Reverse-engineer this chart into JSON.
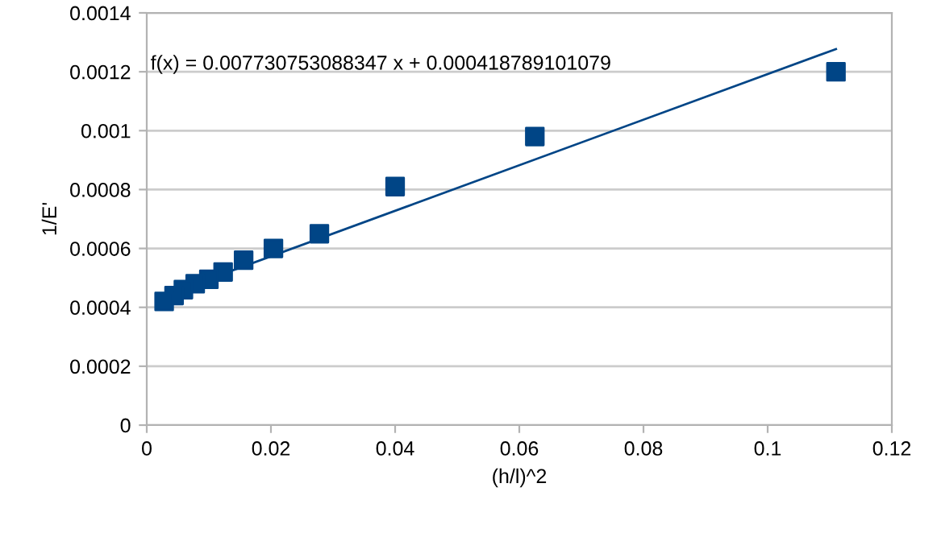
{
  "chart_data": {
    "type": "scatter",
    "xlabel": "(h/l)^2",
    "ylabel": "1/E'",
    "annotations": [
      "f(x) = 0.007730753088347 x + 0.000418789101079"
    ],
    "series": [
      {
        "color": "#004586",
        "marker": "square",
        "x": [
          0.111,
          0.0625,
          0.04,
          0.0278,
          0.0204,
          0.0156,
          0.0123,
          0.01,
          0.0078,
          0.0059,
          0.0044,
          0.0028
        ],
        "values": [
          0.0012,
          0.00098,
          0.00081,
          0.00065,
          0.0006,
          0.00056,
          0.00052,
          0.000495,
          0.00048,
          0.00046,
          0.00044,
          0.00042
        ]
      },
      {
        "type": "line",
        "color": "#004586",
        "marker": "none",
        "x": [
          0.0025,
          0.111
        ],
        "values": [
          0.000438,
          0.001277
        ]
      }
    ],
    "xlim": [
      0,
      0.12
    ],
    "xticks": [
      0,
      0.02,
      0.04,
      0.06,
      0.08,
      0.1,
      0.12
    ],
    "ylim": [
      0,
      0.0014
    ],
    "yticks": [
      0,
      0.0002,
      0.0004,
      0.0006,
      0.0008,
      0.001,
      0.0012,
      0.0014
    ],
    "grid": "y",
    "legend": false
  }
}
